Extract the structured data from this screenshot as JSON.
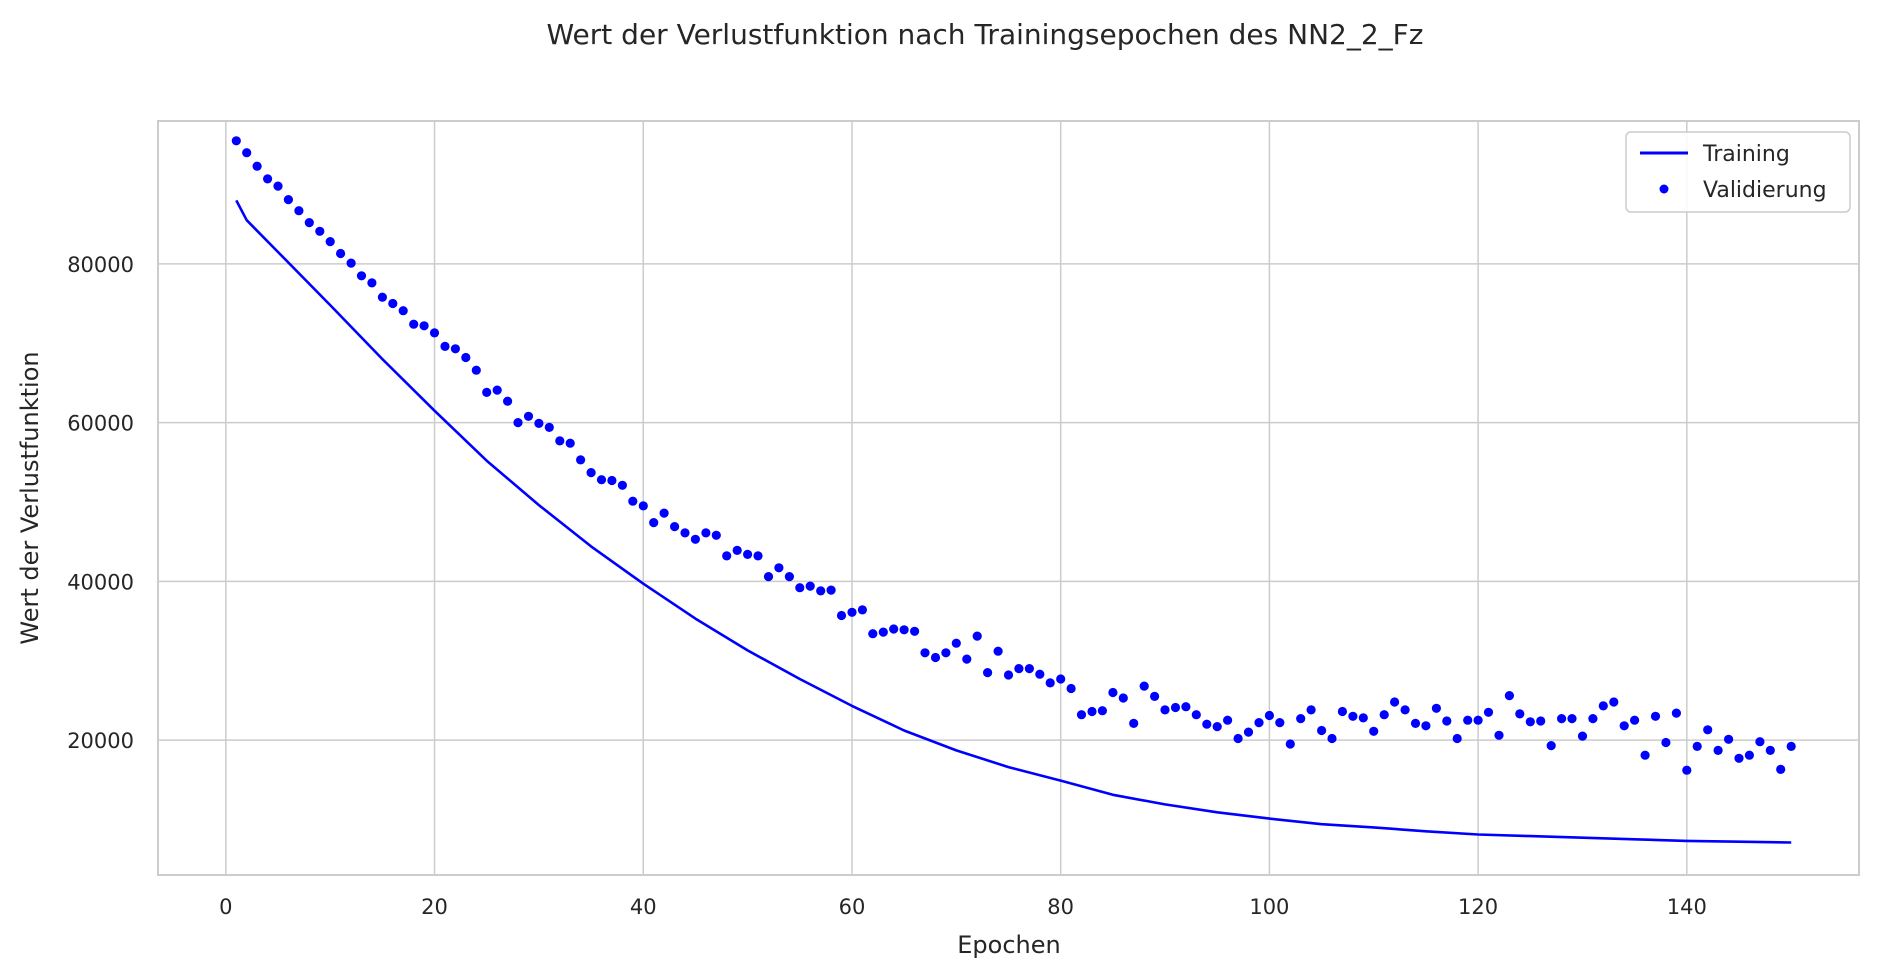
{
  "chart_data": {
    "type": "line",
    "title": "Wert der Verlustfunktion nach Trainingsepochen des NN2_2_Fz",
    "xlabel": "Epochen",
    "ylabel": "Wert der Verlustfunktion",
    "xlim": [
      -6.5,
      156.5
    ],
    "ylim": [
      3000,
      98000
    ],
    "x_ticks": [
      0,
      20,
      40,
      60,
      80,
      100,
      120,
      140
    ],
    "y_ticks": [
      20000,
      40000,
      60000,
      80000
    ],
    "grid": true,
    "legend_position": "top-right",
    "colors": {
      "series": "#0000ff",
      "grid": "#cccccc",
      "text": "#262626"
    },
    "series": [
      {
        "name": "Training",
        "style": "line",
        "x": [
          1,
          2,
          5,
          10,
          15,
          20,
          25,
          30,
          35,
          40,
          45,
          50,
          55,
          60,
          65,
          70,
          75,
          80,
          85,
          90,
          95,
          100,
          105,
          110,
          115,
          120,
          125,
          130,
          135,
          140,
          145,
          150
        ],
        "y": [
          88000,
          85500,
          81500,
          74800,
          68000,
          61500,
          55200,
          49600,
          44400,
          39700,
          35300,
          31300,
          27700,
          24300,
          21200,
          18700,
          16600,
          14900,
          13100,
          11900,
          10900,
          10100,
          9400,
          9000,
          8500,
          8100,
          7900,
          7700,
          7500,
          7300,
          7200,
          7100
        ]
      },
      {
        "name": "Validierung",
        "style": "points",
        "x": [
          1,
          2,
          3,
          4,
          5,
          6,
          7,
          8,
          9,
          10,
          11,
          12,
          13,
          14,
          15,
          16,
          17,
          18,
          19,
          20,
          21,
          22,
          23,
          24,
          25,
          26,
          27,
          28,
          29,
          30,
          31,
          32,
          33,
          34,
          35,
          36,
          37,
          38,
          39,
          40,
          41,
          42,
          43,
          44,
          45,
          46,
          47,
          48,
          49,
          50,
          51,
          52,
          53,
          54,
          55,
          56,
          57,
          58,
          59,
          60,
          61,
          62,
          63,
          64,
          65,
          66,
          67,
          68,
          69,
          70,
          71,
          72,
          73,
          74,
          75,
          76,
          77,
          78,
          79,
          80,
          81,
          82,
          83,
          84,
          85,
          86,
          87,
          88,
          89,
          90,
          91,
          92,
          93,
          94,
          95,
          96,
          97,
          98,
          99,
          100,
          101,
          102,
          103,
          104,
          105,
          106,
          107,
          108,
          109,
          110,
          111,
          112,
          113,
          114,
          115,
          116,
          117,
          118,
          119,
          120,
          121,
          122,
          123,
          124,
          125,
          126,
          127,
          128,
          129,
          130,
          131,
          132,
          133,
          134,
          135,
          136,
          137,
          138,
          139,
          140,
          141,
          142,
          143,
          144,
          145,
          146,
          147,
          148,
          149,
          150
        ],
        "y": [
          95500,
          94000,
          92300,
          90700,
          89800,
          88100,
          86700,
          85200,
          84100,
          82800,
          81300,
          80100,
          78500,
          77600,
          75800,
          75000,
          74100,
          72400,
          72200,
          71300,
          69600,
          69300,
          68200,
          66600,
          63800,
          64100,
          62700,
          60000,
          60800,
          59900,
          59400,
          57700,
          57400,
          55300,
          53700,
          52800,
          52700,
          52100,
          50100,
          49500,
          47400,
          48600,
          46900,
          46100,
          45300,
          46100,
          45800,
          43200,
          43900,
          43400,
          43200,
          40600,
          41700,
          40600,
          39200,
          39400,
          38800,
          38900,
          35700,
          36100,
          36400,
          33400,
          33600,
          34000,
          33900,
          33700,
          31000,
          30400,
          31000,
          32200,
          30200,
          33100,
          28500,
          31200,
          28200,
          29000,
          29000,
          28300,
          27200,
          27700,
          26500,
          23200,
          23600,
          23700,
          26000,
          25300,
          22100,
          26800,
          25500,
          23800,
          24100,
          24200,
          23200,
          22000,
          21700,
          22500,
          20200,
          21000,
          22200,
          23100,
          22200,
          19500,
          22700,
          23800,
          21200,
          20200,
          23600,
          23000,
          22800,
          21100,
          23200,
          24800,
          23800,
          22100,
          21800,
          24000,
          22400,
          20200,
          22500,
          22500,
          23500,
          20600,
          25600,
          23300,
          22300,
          22400,
          19300,
          22700,
          22700,
          20500,
          22700,
          24300,
          24800,
          21800,
          22500,
          18100,
          23000,
          19700,
          23400,
          16200,
          19200,
          21300,
          18700,
          20100,
          17700,
          18100,
          19800,
          18700,
          16300,
          19200
        ]
      }
    ]
  }
}
